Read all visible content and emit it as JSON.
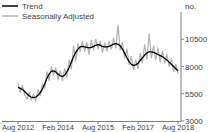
{
  "chart_data": {
    "type": "line",
    "y_label": "no.",
    "categories": [
      "Aug 2012",
      null,
      null,
      null,
      null,
      null,
      null,
      null,
      null,
      null,
      null,
      null,
      null,
      null,
      null,
      null,
      null,
      null,
      "Feb 2014",
      null,
      null,
      null,
      null,
      null,
      null,
      null,
      null,
      null,
      null,
      null,
      null,
      null,
      null,
      null,
      null,
      null,
      "Aug 2015",
      null,
      null,
      null,
      null,
      null,
      null,
      null,
      null,
      null,
      null,
      null,
      null,
      null,
      null,
      null,
      null,
      null,
      "Feb 2017",
      null,
      null,
      null,
      null,
      null,
      null,
      null,
      null,
      null,
      null,
      null,
      null,
      null,
      null,
      null,
      null,
      null,
      "Aug 2018"
    ],
    "series": [
      {
        "name": "Trend",
        "color": "#000000",
        "values": [
          6100,
          6000,
          5900,
          5700,
          5500,
          5300,
          5200,
          5150,
          5200,
          5350,
          5600,
          5950,
          6400,
          6900,
          7300,
          7550,
          7600,
          7500,
          7300,
          7150,
          7100,
          7200,
          7500,
          7900,
          8400,
          8900,
          9300,
          9600,
          9800,
          9850,
          9800,
          9750,
          9700,
          9750,
          9850,
          9950,
          10000,
          9950,
          9850,
          9800,
          9800,
          9850,
          9950,
          10050,
          10100,
          10050,
          9900,
          9600,
          9200,
          8800,
          8450,
          8200,
          8100,
          8150,
          8300,
          8550,
          8800,
          9050,
          9250,
          9350,
          9350,
          9300,
          9200,
          9100,
          9000,
          8900,
          8750,
          8600,
          8400,
          8200,
          8000,
          7800,
          7600
        ]
      },
      {
        "name": "Seasonally Adjusted",
        "color": "#b3b3b3",
        "values": [
          6500,
          5600,
          6300,
          5400,
          5000,
          5600,
          4900,
          5500,
          4800,
          5900,
          5300,
          6400,
          6000,
          7500,
          6700,
          8000,
          7200,
          7900,
          6800,
          7600,
          6700,
          7800,
          7000,
          8600,
          7800,
          9900,
          8500,
          10100,
          9400,
          10300,
          9400,
          10200,
          9100,
          10400,
          9500,
          10500,
          9600,
          10300,
          9300,
          10200,
          9400,
          10300,
          9600,
          10600,
          9700,
          11800,
          9500,
          10200,
          8800,
          9600,
          8200,
          8900,
          7700,
          8600,
          7800,
          9200,
          8300,
          10000,
          8700,
          11000,
          8800,
          9900,
          8600,
          9700,
          8400,
          9400,
          8300,
          9100,
          8000,
          8700,
          7500,
          8200,
          7300
        ]
      }
    ],
    "ylim": [
      3000,
      13000
    ],
    "yticks": [
      3000,
      5500,
      8000,
      10500
    ],
    "grid": false,
    "legend": "top-left"
  }
}
